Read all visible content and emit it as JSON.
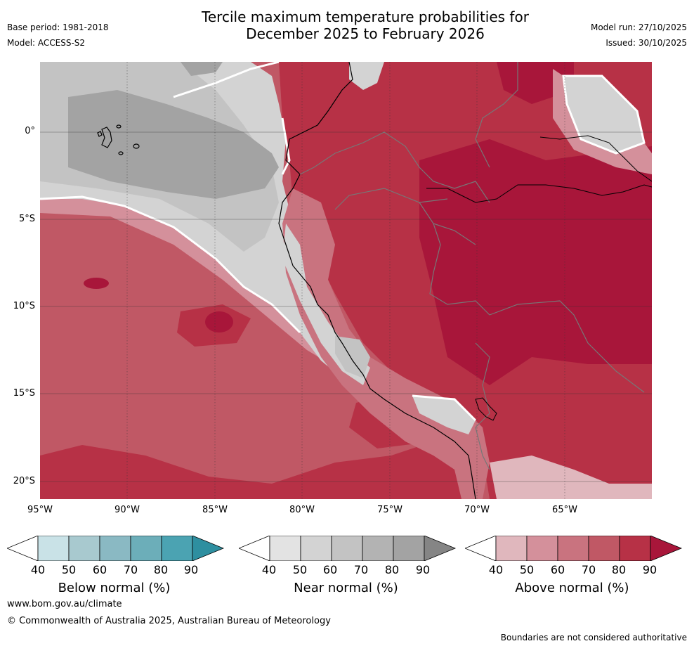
{
  "header": {
    "title_line1": "Tercile maximum temperature probabilities for",
    "title_line2": "December 2025 to February 2026",
    "base_period": "Base period: 1981-2018",
    "model": "Model: ACCESS-S2",
    "model_run": "Model run: 27/10/2025",
    "issued": "Issued: 30/10/2025"
  },
  "map": {
    "lon_ticks": [
      "95°W",
      "90°W",
      "85°W",
      "80°W",
      "75°W",
      "70°W",
      "65°W"
    ],
    "lat_ticks": [
      "0°",
      "5°S",
      "10°S",
      "15°S",
      "20°S"
    ],
    "extent": {
      "lon_min": -95,
      "lon_max": -60,
      "lat_min": -21,
      "lat_max": 4
    }
  },
  "colorbars": [
    {
      "label": "Below normal (%)",
      "ticks": [
        "40",
        "50",
        "60",
        "70",
        "80",
        "90"
      ],
      "colors": [
        "#ffffff",
        "#c9e2e7",
        "#a8c9cf",
        "#8ab9c3",
        "#6caeb9",
        "#4ba3b2",
        "#2e8fa0"
      ]
    },
    {
      "label": "Near normal (%)",
      "ticks": [
        "40",
        "50",
        "60",
        "70",
        "80",
        "90"
      ],
      "colors": [
        "#ffffff",
        "#e3e3e3",
        "#d3d3d3",
        "#c3c3c3",
        "#b3b3b3",
        "#a3a3a3",
        "#858585"
      ]
    },
    {
      "label": "Above normal (%)",
      "ticks": [
        "40",
        "50",
        "60",
        "70",
        "80",
        "90"
      ],
      "colors": [
        "#ffffff",
        "#e0b7bd",
        "#d4909b",
        "#c9737f",
        "#c05865",
        "#b73146",
        "#a8163a"
      ]
    }
  ],
  "footer": {
    "website": "www.bom.gov.au/climate",
    "copyright": "© Commonwealth of Australia 2025, Australian Bureau of Meteorology",
    "disclaimer": "Boundaries are not considered authoritative"
  }
}
